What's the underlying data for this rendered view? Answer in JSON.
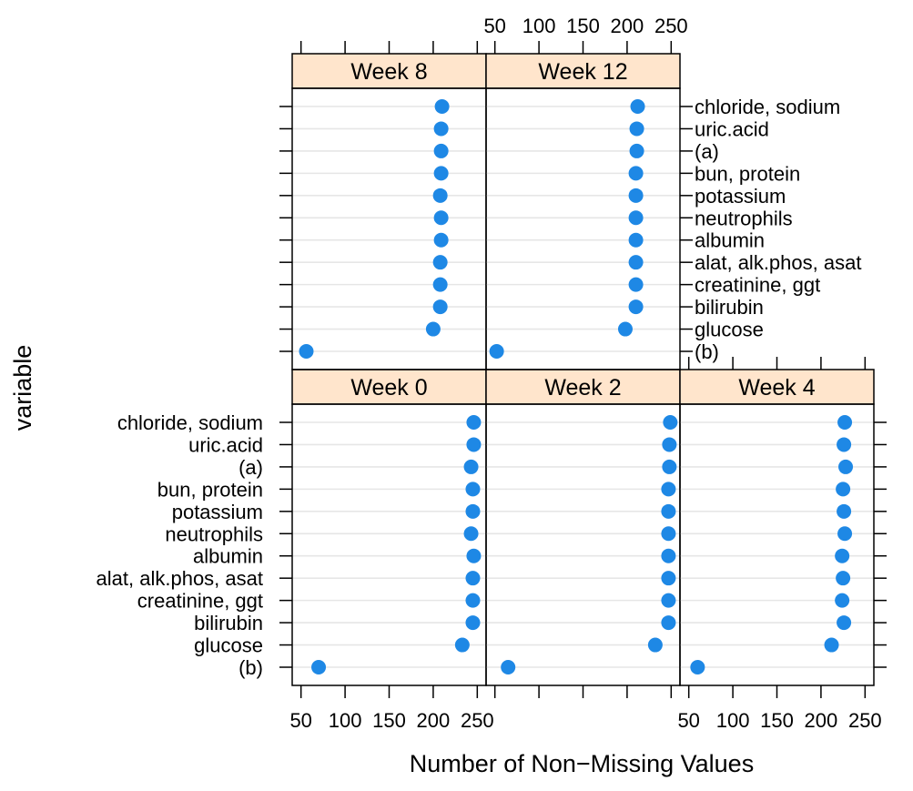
{
  "chart_data": {
    "type": "scatter",
    "subtype": "dotplot",
    "xlabel": "Number of Non−Missing Values",
    "ylabel": "variable",
    "xlim": [
      40,
      260
    ],
    "x_ticks": [
      50,
      100,
      150,
      200,
      250
    ],
    "x_tick_labels": [
      "50",
      "100",
      "150",
      "200",
      "250"
    ],
    "grid": true,
    "categories": [
      "(b)",
      "glucose",
      "bilirubin",
      "creatinine, ggt",
      "alat, alk.phos, asat",
      "albumin",
      "neutrophils",
      "potassium",
      "bun, protein",
      "(a)",
      "uric.acid",
      "chloride, sodium"
    ],
    "panels": [
      {
        "name": "Week 0",
        "values": [
          70,
          233,
          245,
          245,
          245,
          246,
          243,
          245,
          245,
          243,
          246,
          246
        ]
      },
      {
        "name": "Week 2",
        "values": [
          65,
          232,
          247,
          247,
          247,
          247,
          247,
          247,
          247,
          248,
          248,
          249
        ]
      },
      {
        "name": "Week 4",
        "values": [
          60,
          212,
          226,
          224,
          225,
          224,
          227,
          226,
          225,
          228,
          226,
          227
        ]
      },
      {
        "name": "Week 8",
        "values": [
          56,
          200,
          208,
          208,
          208,
          209,
          209,
          208,
          209,
          209,
          209,
          210
        ]
      },
      {
        "name": "Week 12",
        "values": [
          52,
          198,
          210,
          210,
          210,
          210,
          210,
          210,
          210,
          211,
          211,
          212
        ]
      }
    ]
  },
  "colors": {
    "point": "#1E88E5",
    "strip": "#FFE5CC",
    "grid": "#E6E6E6"
  }
}
